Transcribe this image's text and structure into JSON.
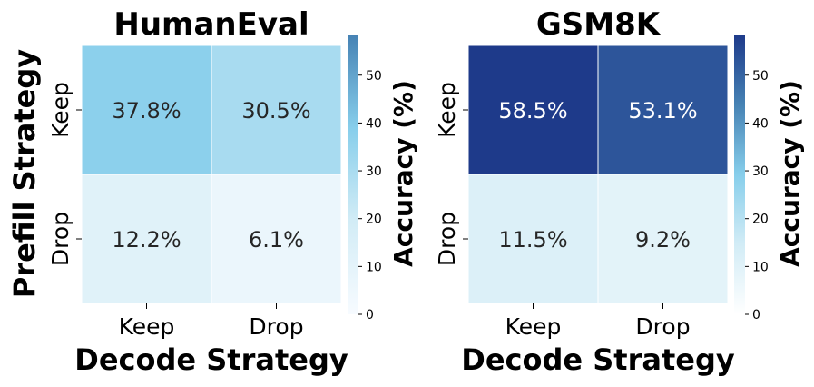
{
  "chart_data": [
    {
      "type": "heatmap",
      "title": "HumanEval",
      "xlabel": "Decode Strategy",
      "ylabel": "Prefill Strategy",
      "x_categories": [
        "Keep",
        "Drop"
      ],
      "y_categories": [
        "Keep",
        "Drop"
      ],
      "values": [
        [
          37.8,
          30.5
        ],
        [
          12.2,
          6.1
        ]
      ],
      "cell_labels": [
        [
          "37.8%",
          "30.5%"
        ],
        [
          "12.2%",
          "6.1%"
        ]
      ],
      "colorbar": {
        "label": "Accuracy (%)",
        "range": [
          0,
          58.5
        ],
        "ticks": [
          0,
          10,
          20,
          30,
          40,
          50
        ],
        "tick_labels": [
          "0",
          "10",
          "20",
          "30",
          "40",
          "50"
        ],
        "colormap": [
          "#f7fbff",
          "#d2ecf6",
          "#87ceeb",
          "#4682b4"
        ]
      }
    },
    {
      "type": "heatmap",
      "title": "GSM8K",
      "xlabel": "Decode Strategy",
      "ylabel": "",
      "x_categories": [
        "Keep",
        "Drop"
      ],
      "y_categories": [
        "Keep",
        "Drop"
      ],
      "values": [
        [
          58.5,
          53.1
        ],
        [
          11.5,
          9.2
        ]
      ],
      "cell_labels": [
        [
          "58.5%",
          "53.1%"
        ],
        [
          "11.5%",
          "9.2%"
        ]
      ],
      "colorbar": {
        "label": "Accuracy (%)",
        "range": [
          0,
          58.5
        ],
        "ticks": [
          0,
          10,
          20,
          30,
          40,
          50
        ],
        "tick_labels": [
          "0",
          "10",
          "20",
          "30",
          "40",
          "50"
        ],
        "colormap": [
          "#ffffff",
          "#d2ecf6",
          "#87ceeb",
          "#4682b4",
          "#1e3a8a"
        ]
      }
    }
  ]
}
